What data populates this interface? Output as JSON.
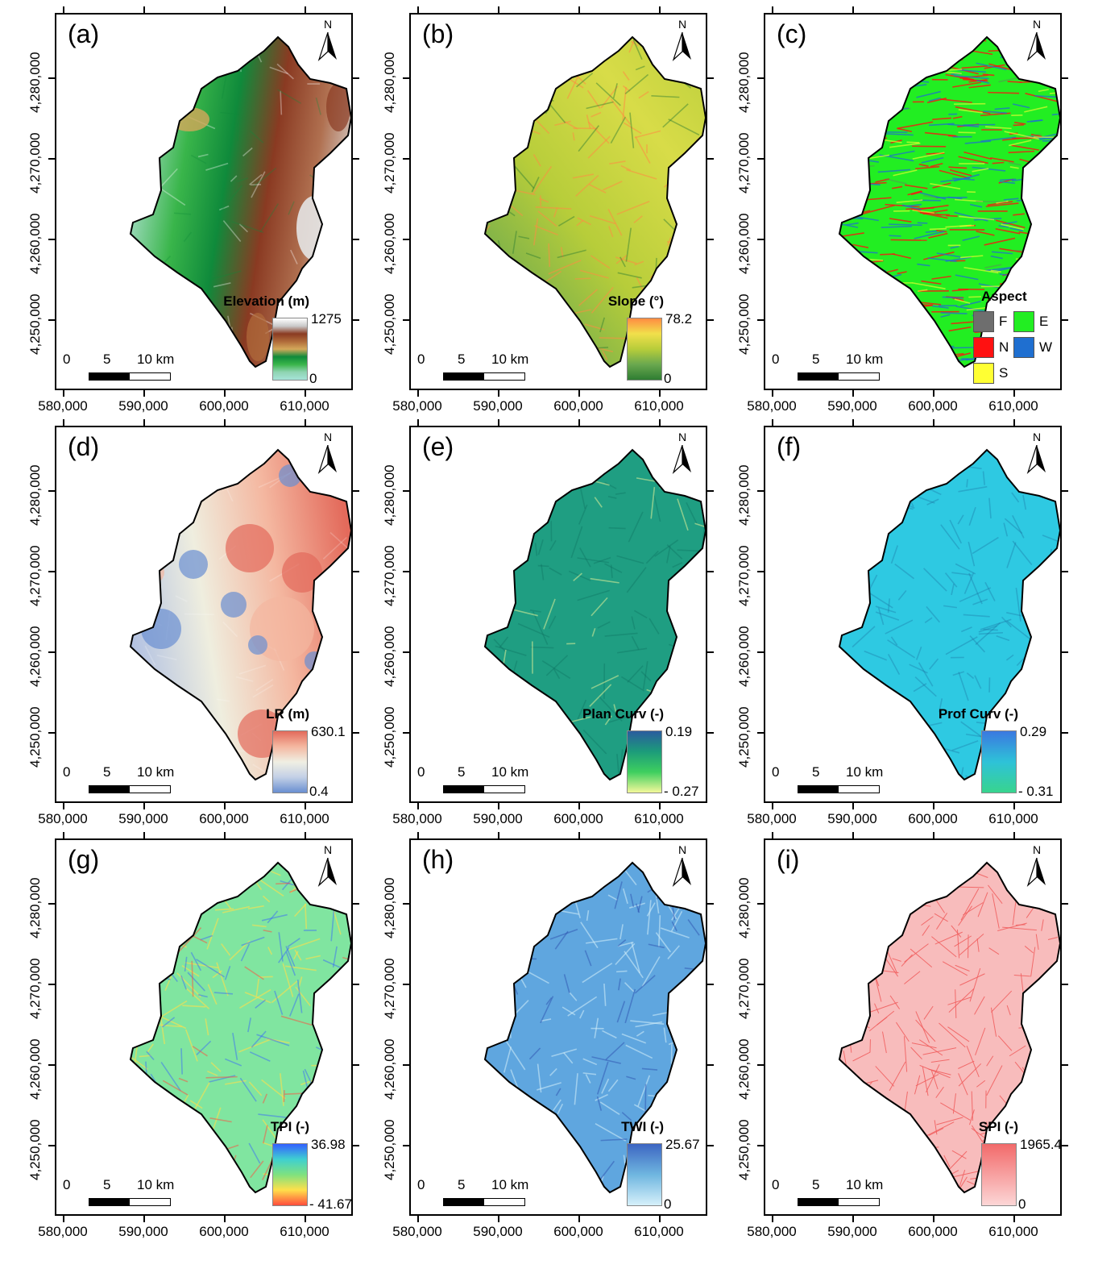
{
  "colors": {
    "elevation": [
      "#a6e3d8",
      "#8fd4b2",
      "#39b54a",
      "#0f8a3b",
      "#d4a85a",
      "#b06b3a",
      "#8a3a22",
      "#c9c9c9",
      "#ffffff"
    ],
    "slope": [
      "#2e7d32",
      "#6aa84f",
      "#b7cd3a",
      "#f1e04b",
      "#ff8c42"
    ],
    "lr": [
      "#6a8fd1",
      "#c3d0e6",
      "#f0efe3",
      "#f4b7a0",
      "#e36a5b"
    ],
    "plan": [
      "#f3f89a",
      "#3ecf5f",
      "#1c9c7a",
      "#2a5c9e"
    ],
    "prof": [
      "#38d48e",
      "#2ec2d8",
      "#3b78e0"
    ],
    "tpi": [
      "#ff4d3d",
      "#ffe04a",
      "#7fe17f",
      "#3fd0d0",
      "#3360ff"
    ],
    "twi": [
      "#d6f0fa",
      "#6fb6e0",
      "#3d66c2"
    ],
    "spi": [
      "#fcd6d6",
      "#f26a6a"
    ],
    "aspect": {
      "F": "#6e6e6e",
      "E": "#22ee22",
      "N": "#ff1111",
      "W": "#1f6fd0",
      "S": "#ffff33"
    }
  },
  "x_ticks": [
    "580,000",
    "590,000",
    "600,000",
    "610,000"
  ],
  "y_ticks": [
    "4,250,000",
    "4,260,000",
    "4,270,000",
    "4,280,000"
  ],
  "scale_bar": {
    "labels": [
      "0",
      "5",
      "10 km"
    ]
  },
  "north_label": "N",
  "panels": {
    "a": {
      "label": "(a)",
      "legend_title": "Elevation (m)",
      "max": "1275",
      "min": "0"
    },
    "b": {
      "label": "(b)",
      "legend_title": "Slope (°)",
      "max": "78.2",
      "min": "0"
    },
    "c": {
      "label": "(c)",
      "legend_title": "Aspect",
      "classes": [
        "F",
        "E",
        "N",
        "W",
        "S"
      ]
    },
    "d": {
      "label": "(d)",
      "legend_title": "LR (m)",
      "max": "630.1",
      "min": "0.4"
    },
    "e": {
      "label": "(e)",
      "legend_title": "Plan Curv (-)",
      "max": "0.19",
      "min": "- 0.27"
    },
    "f": {
      "label": "(f)",
      "legend_title": "Prof Curv (-)",
      "max": "0.29",
      "min": "- 0.31"
    },
    "g": {
      "label": "(g)",
      "legend_title": "TPI (-)",
      "max": "36.98",
      "min": "- 41.67"
    },
    "h": {
      "label": "(h)",
      "legend_title": "TWI (-)",
      "max": "25.67",
      "min": "0"
    },
    "i": {
      "label": "(i)",
      "legend_title": "SPI (-)",
      "max": "1965.4",
      "min": "0"
    }
  }
}
